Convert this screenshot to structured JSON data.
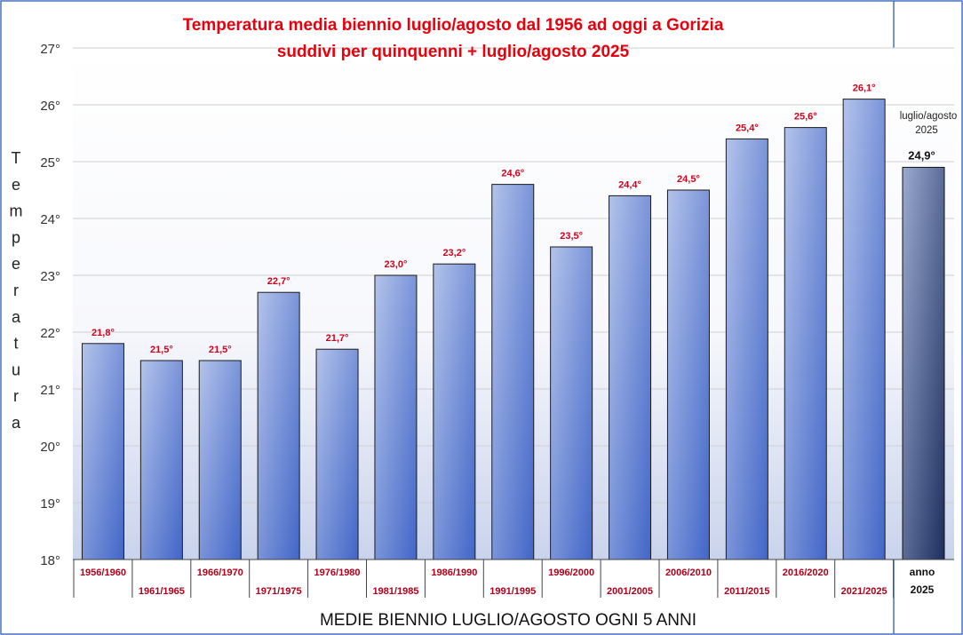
{
  "chart_data": {
    "type": "bar",
    "title_line1": "Temperatura media biennio luglio/agosto dal 1956 ad oggi a Gorizia",
    "title_line2": "suddivi per quinquenni + luglio/agosto 2025",
    "ylabel": "Temperatura",
    "xlabel": "MEDIE  BIENNIO LUGLIO/AGOSTO OGNI  5  ANNI",
    "ylim": [
      18,
      27
    ],
    "yticks": [
      {
        "v": 18,
        "label": "18°"
      },
      {
        "v": 19,
        "label": "19°"
      },
      {
        "v": 20,
        "label": "20°"
      },
      {
        "v": 21,
        "label": "21°"
      },
      {
        "v": 22,
        "label": "22°"
      },
      {
        "v": 23,
        "label": "23°"
      },
      {
        "v": 24,
        "label": "24°"
      },
      {
        "v": 25,
        "label": "25°"
      },
      {
        "v": 26,
        "label": "26°"
      },
      {
        "v": 27,
        "label": "27°"
      }
    ],
    "grid": true,
    "categories": [
      "1956/1960",
      "1961/1965",
      "1966/1970",
      "1971/1975",
      "1976/1980",
      "1981/1985",
      "1986/1990",
      "1991/1995",
      "1996/2000",
      "2001/2005",
      "2006/2010",
      "2011/2015",
      "2016/2020",
      "2021/2025"
    ],
    "values": [
      21.8,
      21.5,
      21.5,
      22.7,
      21.7,
      23.0,
      23.2,
      24.6,
      23.5,
      24.4,
      24.5,
      25.4,
      25.6,
      26.1
    ],
    "value_labels": [
      "21,8°",
      "21,5°",
      "21,5°",
      "22,7°",
      "21,7°",
      "23,0°",
      "23,2°",
      "24,6°",
      "23,5°",
      "24,4°",
      "24,5°",
      "25,4°",
      "25,6°",
      "26,1°"
    ],
    "extra_bar": {
      "category_line1": "anno",
      "category_line2": "2025",
      "value": 24.9,
      "value_label": "24,9°",
      "note_line1": "luglio/agosto",
      "note_line2": "2025"
    },
    "colors": {
      "title": "#e8000c",
      "value_label": "#d0021b",
      "category_label": "#b0001a",
      "bar_light": "#b3c3ea",
      "bar_dark": "#4266c8",
      "extra_bar_light": "#9aaad0",
      "extra_bar_dark": "#1d2f5e",
      "border": "#4472c4"
    }
  }
}
